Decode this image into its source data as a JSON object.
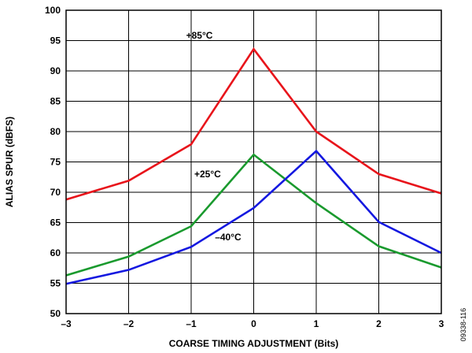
{
  "chart_data": {
    "type": "line",
    "xlabel": "COARSE TIMING ADJUSTMENT (Bits)",
    "ylabel": "ALIAS SPUR (dBFS)",
    "xlim": [
      -3,
      3
    ],
    "ylim": [
      50,
      100
    ],
    "x_ticks": [
      -3,
      -2,
      -1,
      0,
      1,
      2,
      3
    ],
    "x_tick_labels": [
      "–3",
      "–2",
      "–1",
      "0",
      "1",
      "2",
      "3"
    ],
    "y_ticks": [
      50,
      55,
      60,
      65,
      70,
      75,
      80,
      85,
      90,
      95,
      100
    ],
    "y_tick_labels": [
      "50",
      "55",
      "60",
      "65",
      "70",
      "75",
      "80",
      "85",
      "90",
      "95",
      "100"
    ],
    "grid": true,
    "x": [
      -3,
      -2,
      -1,
      0,
      1,
      2,
      3
    ],
    "series": [
      {
        "name": "+85°C",
        "color": "#e8141b",
        "values": [
          68.8,
          71.9,
          77.9,
          93.6,
          80.0,
          73.0,
          69.8
        ]
      },
      {
        "name": "+25°C",
        "color": "#1a9a2e",
        "values": [
          56.3,
          59.4,
          64.4,
          76.2,
          68.2,
          61.1,
          57.6
        ]
      },
      {
        "name": "–40°C",
        "color": "#1418e0",
        "values": [
          54.9,
          57.2,
          61.0,
          67.4,
          76.8,
          65.1,
          60.0
        ]
      }
    ],
    "annotations": [
      {
        "text": "+85°C",
        "series": 0
      },
      {
        "text": "+25°C",
        "series": 1
      },
      {
        "text": "–40°C",
        "series": 2
      }
    ],
    "figure_id": "09338-116"
  }
}
